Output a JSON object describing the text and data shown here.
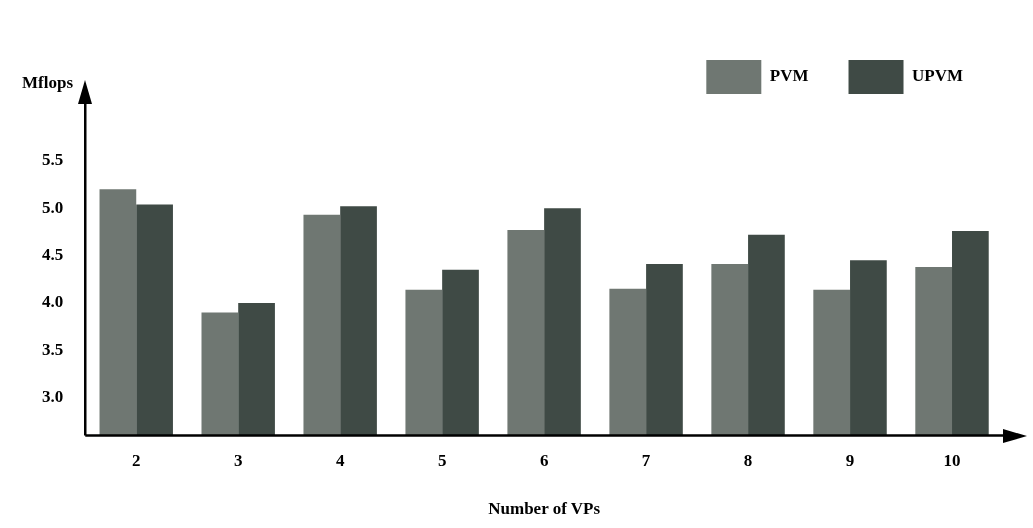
{
  "chart_data": {
    "type": "bar",
    "xlabel": "Number of VPs",
    "ylabel": "Mflops",
    "categories": [
      "2",
      "3",
      "4",
      "5",
      "6",
      "7",
      "8",
      "9",
      "10"
    ],
    "series": [
      {
        "name": "PVM",
        "color": "#6f7772",
        "values": [
          5.2,
          3.9,
          4.93,
          4.14,
          4.77,
          4.15,
          4.41,
          4.14,
          4.38
        ]
      },
      {
        "name": "UPVM",
        "color": "#3f4a45",
        "values": [
          5.04,
          4.0,
          5.02,
          4.35,
          5.0,
          4.41,
          4.72,
          4.45,
          4.76
        ]
      }
    ],
    "ylim": [
      2.6,
      6.1
    ],
    "yticks": [
      {
        "value": 3,
        "label": "3.0"
      },
      {
        "value": 3.5,
        "label": "3.5"
      },
      {
        "value": 4,
        "label": "4.0"
      },
      {
        "value": 4.5,
        "label": "4.5"
      },
      {
        "value": 5,
        "label": "5.0"
      },
      {
        "value": 5.5,
        "label": "5.5"
      }
    ],
    "grid": false,
    "legend": "top right"
  }
}
